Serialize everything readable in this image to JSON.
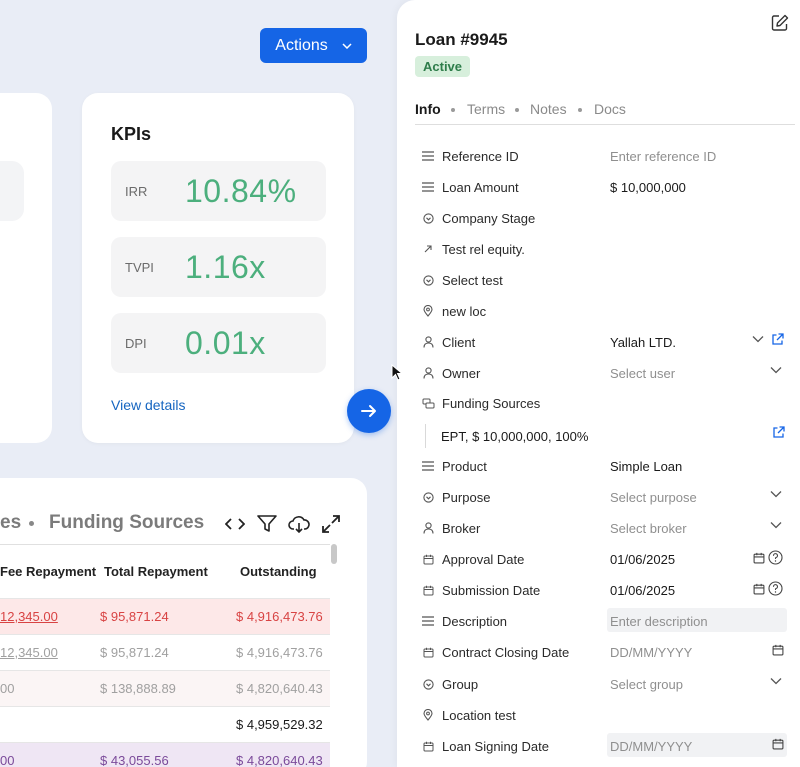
{
  "header": {
    "actions_label": "Actions"
  },
  "kpis": {
    "title": "KPIs",
    "items": [
      {
        "label": "IRR",
        "value": "10.84%"
      },
      {
        "label": "TVPI",
        "value": "1.16x"
      },
      {
        "label": "DPI",
        "value": "0.01x"
      }
    ],
    "view_details": "View details"
  },
  "table": {
    "tabs": [
      "es",
      "Funding Sources"
    ],
    "columns": [
      "Fee Repayment",
      "Total Repayment",
      "Outstanding"
    ],
    "rows": [
      {
        "fee": "12,345.00",
        "total": "$ 95,871.24",
        "outstanding": "$ 4,916,473.76",
        "style": "red"
      },
      {
        "fee": "12,345.00",
        "total": "$ 95,871.24",
        "outstanding": "$ 4,916,473.76",
        "style": "grey"
      },
      {
        "fee": "00",
        "total": "$ 138,888.89",
        "outstanding": "$ 4,820,640.43",
        "style": "grey"
      },
      {
        "fee": "",
        "total": "",
        "outstanding": "$ 4,959,529.32",
        "style": "plain"
      },
      {
        "fee": "00",
        "total": "$ 43,055.56",
        "outstanding": "$ 4,820,640.43",
        "style": "purple"
      }
    ]
  },
  "panel": {
    "title": "Loan #9945",
    "status": "Active",
    "tabs": [
      "Info",
      "Terms",
      "Notes",
      "Docs"
    ],
    "fields": {
      "reference_id": {
        "label": "Reference ID",
        "placeholder": "Enter reference ID"
      },
      "loan_amount": {
        "label": "Loan Amount",
        "value": "$ 10,000,000"
      },
      "company_stage": {
        "label": "Company Stage"
      },
      "test_rel_equity": {
        "label": "Test rel equity."
      },
      "select_test": {
        "label": "Select test"
      },
      "new_loc": {
        "label": "new loc"
      },
      "client": {
        "label": "Client",
        "value": "Yallah LTD."
      },
      "owner": {
        "label": "Owner",
        "placeholder": "Select user"
      },
      "funding_sources": {
        "label": "Funding Sources",
        "entry": "EPT, $ 10,000,000, 100%"
      },
      "product": {
        "label": "Product",
        "value": "Simple Loan"
      },
      "purpose": {
        "label": "Purpose",
        "placeholder": "Select purpose"
      },
      "broker": {
        "label": "Broker",
        "placeholder": "Select broker"
      },
      "approval_date": {
        "label": "Approval Date",
        "value": "01/06/2025"
      },
      "submission_date": {
        "label": "Submission Date",
        "value": "01/06/2025"
      },
      "description": {
        "label": "Description",
        "placeholder": "Enter description"
      },
      "contract_closing_date": {
        "label": "Contract Closing Date",
        "placeholder": "DD/MM/YYYY"
      },
      "group": {
        "label": "Group",
        "placeholder": "Select group"
      },
      "location_test": {
        "label": "Location test"
      },
      "loan_signing_date": {
        "label": "Loan Signing Date",
        "placeholder": "DD/MM/YYYY"
      }
    }
  },
  "colors": {
    "accent": "#1565e6",
    "kpi_green": "#4caf7d",
    "red_text": "#d84343",
    "purple_text": "#7b4a9a"
  }
}
